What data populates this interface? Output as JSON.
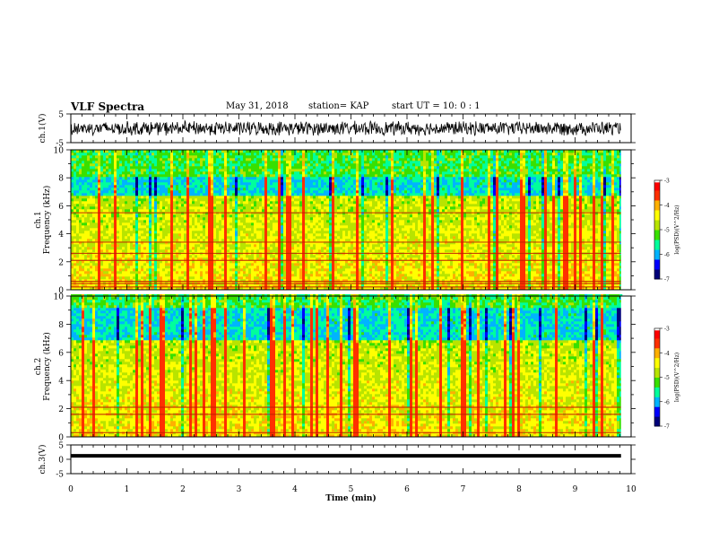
{
  "header": {
    "title": "VLF Spectra",
    "date": "May 31, 2018",
    "station": "station= KAP",
    "start": "start  UT =   10: 0  : 1"
  },
  "colors": {
    "colormap": [
      "#00007a",
      "#0000ff",
      "#00b4ff",
      "#00ff9c",
      "#38e000",
      "#b8e400",
      "#ffff00",
      "#ffb000",
      "#ff3000",
      "#ff0000",
      "#ffffff"
    ],
    "trace": "#000000"
  },
  "chart_data": [
    {
      "type": "line",
      "id": "ch1-waveform",
      "ylabel": "ch.1(V)",
      "ylim": [
        -5,
        5
      ],
      "yticks": [
        "5",
        "-5"
      ],
      "x_range_min": [
        0,
        9.82
      ],
      "amplitude_typical": 2.5
    },
    {
      "type": "heatmap",
      "id": "ch1-spectrogram",
      "ylabel_line1": "ch.1",
      "ylabel_line2": "Frequency (kHz)",
      "ylim": [
        0,
        10
      ],
      "yticks": [
        "0",
        "2",
        "4",
        "6",
        "8",
        "10"
      ],
      "x_range_min": [
        0,
        9.82
      ],
      "colorbar": {
        "label": "log(PSD)(V^2/Hz)",
        "ticks": [
          "-3",
          "-4",
          "-5",
          "-6",
          "-7"
        ],
        "range": [
          -7,
          -3
        ]
      },
      "lines_khz": [
        0.2,
        0.45,
        0.6,
        2.1,
        2.6,
        3.4,
        5.5
      ],
      "low_band_khz": [
        1.9,
        3.2
      ]
    },
    {
      "type": "heatmap",
      "id": "ch2-spectrogram",
      "ylabel_line1": "ch.2",
      "ylabel_line2": "Frequency (kHz)",
      "ylim": [
        0,
        10
      ],
      "yticks": [
        "0",
        "2",
        "4",
        "6",
        "8",
        "10"
      ],
      "x_range_min": [
        0,
        9.82
      ],
      "colorbar": {
        "label": "log(PSD)(V^2/Hz)",
        "ticks": [
          "-3",
          "-4",
          "-5",
          "-6",
          "-7"
        ],
        "range": [
          -7,
          -3
        ]
      },
      "lines_khz": [
        0.3,
        1.6,
        2.1
      ],
      "low_band_khz": [
        0.8,
        3.1
      ]
    },
    {
      "type": "line",
      "id": "ch3-waveform",
      "ylabel": "ch.3(V)",
      "ylim": [
        -5,
        5
      ],
      "yticks": [
        "5",
        "0",
        "-5"
      ],
      "x_range_min": [
        0,
        9.82
      ],
      "constant_value": 1.2,
      "xlabel": "Time (min)",
      "xticks": [
        "0",
        "1",
        "2",
        "3",
        "4",
        "5",
        "6",
        "7",
        "8",
        "9",
        "10"
      ],
      "xlim": [
        0,
        10
      ]
    }
  ]
}
